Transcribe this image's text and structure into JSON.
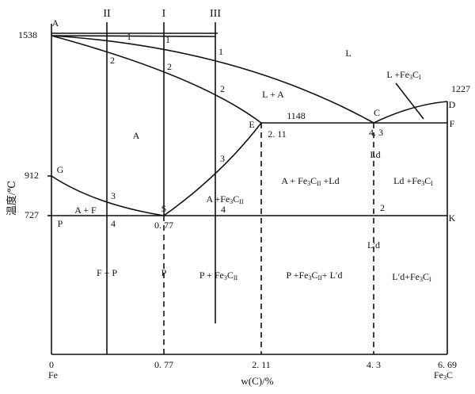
{
  "alloys": [
    "II",
    "I",
    "III"
  ],
  "axes": {
    "y_label": "温度/℃",
    "x_label": "w(C)/%",
    "y_ticks": [
      "1538",
      "912",
      "727"
    ],
    "x_ticks": [
      "0",
      "0. 77",
      "2. 11",
      "4. 3",
      "6. 69"
    ],
    "x_ends": [
      "Fe",
      [
        "Fe",
        "3",
        "C"
      ]
    ]
  },
  "points": [
    "A",
    "G",
    "E",
    "C",
    "D",
    "F",
    "S",
    "P",
    "K",
    "L"
  ],
  "numbers": [
    "1",
    "1",
    "1",
    "2",
    "2",
    "2",
    "3",
    "3",
    "4",
    "4",
    "2"
  ],
  "values": [
    "1148",
    "2. 11",
    "4. 3",
    "0. 77",
    "1227"
  ],
  "regions": [
    "A",
    "L + A",
    [
      "L +Fe",
      "3",
      "C",
      "I"
    ],
    "Ld",
    [
      "A + Fe",
      "3",
      "C",
      "II",
      " +Ld"
    ],
    [
      "Ld +Fe",
      "3",
      "C",
      "I"
    ],
    [
      "A +Fe",
      "3",
      "C",
      "II"
    ],
    "A + F",
    "L′d",
    "F + P",
    "P",
    [
      "P + Fe",
      "3",
      "C",
      "II"
    ],
    [
      "P +Fe",
      "3",
      "C",
      "II",
      "+ L′d"
    ],
    [
      "L′d+Fe",
      "3",
      "C",
      "I"
    ]
  ]
}
